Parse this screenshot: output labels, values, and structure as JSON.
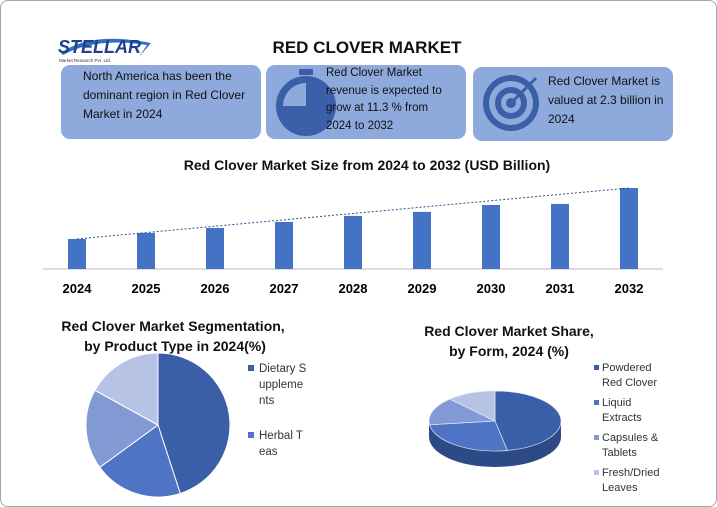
{
  "header": {
    "logo": "STELLAR",
    "logo_subtitle": "Market Research Pvt. Ltd.",
    "title": "RED CLOVER MARKET"
  },
  "info_boxes": [
    "North America has been the dominant region in Red Clover Market in 2024",
    "Red Clover Market revenue is expected to grow at 11.3 % from 2024 to 2032",
    "Red Clover Market is valued at 2.3 billion in 2024"
  ],
  "chart_data": [
    {
      "type": "bar",
      "title": "Red Clover Market Size from 2024 to 2032 (USD Billion)",
      "categories": [
        "2024",
        "2025",
        "2026",
        "2027",
        "2028",
        "2029",
        "2030",
        "2031",
        "2032"
      ],
      "values": [
        2.3,
        2.76,
        3.14,
        3.6,
        4.06,
        4.37,
        4.9,
        4.98,
        6.2
      ],
      "color": "#4472c4",
      "trendline": true
    },
    {
      "type": "pie",
      "title": "Red Clover Market Segmentation, by Product Type in 2024(%)",
      "categories": [
        "Dietary Supplements",
        "Herbal Teas",
        null,
        null
      ],
      "values": [
        45,
        20,
        18,
        17
      ],
      "colors": [
        "#3b5ea8",
        "#4f74c6",
        "#8399d4",
        "#b7c3e5"
      ]
    },
    {
      "type": "pie3d",
      "title": "Red Clover Market Share, by Form, 2024 (%)",
      "categories": [
        "Powdered Red Clover",
        "Liquid Extracts",
        "Capsules & Tablets",
        "Fresh/Dried Leaves"
      ],
      "values": [
        47,
        26,
        15,
        12
      ],
      "colors": [
        "#3b5ea8",
        "#4f74c6",
        "#8399d4",
        "#b7c3e5"
      ]
    }
  ]
}
